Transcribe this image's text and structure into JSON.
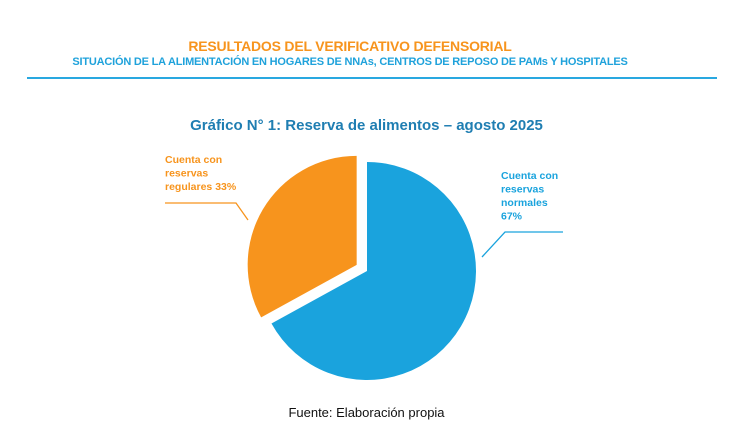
{
  "header": {
    "title": "RESULTADOS DEL VERIFICATIVO DEFENSORIAL",
    "subtitle": "SITUACIÓN DE LA ALIMENTACIÓN EN HOGARES DE NNAs, CENTROS DE REPOSO DE PAMs Y HOSPITALES"
  },
  "chart_data": {
    "type": "pie",
    "title": "Gráfico N° 1: Reserva de alimentos – agosto 2025",
    "slices": [
      {
        "name": "Cuenta con reservas normales",
        "value": 67,
        "color": "#1AA3DD",
        "label_lines": [
          "Cuenta con",
          "reservas",
          "normales",
          "67%"
        ],
        "exploded": false
      },
      {
        "name": "Cuenta con reservas regulares",
        "value": 33,
        "color": "#F7941D",
        "label_lines": [
          "Cuenta con",
          "reservas",
          "regulares 33%"
        ],
        "exploded": true
      }
    ],
    "legend": "none",
    "label_position": "outside-with-leader-lines"
  },
  "footer": {
    "source": "Fuente: Elaboración propia"
  }
}
